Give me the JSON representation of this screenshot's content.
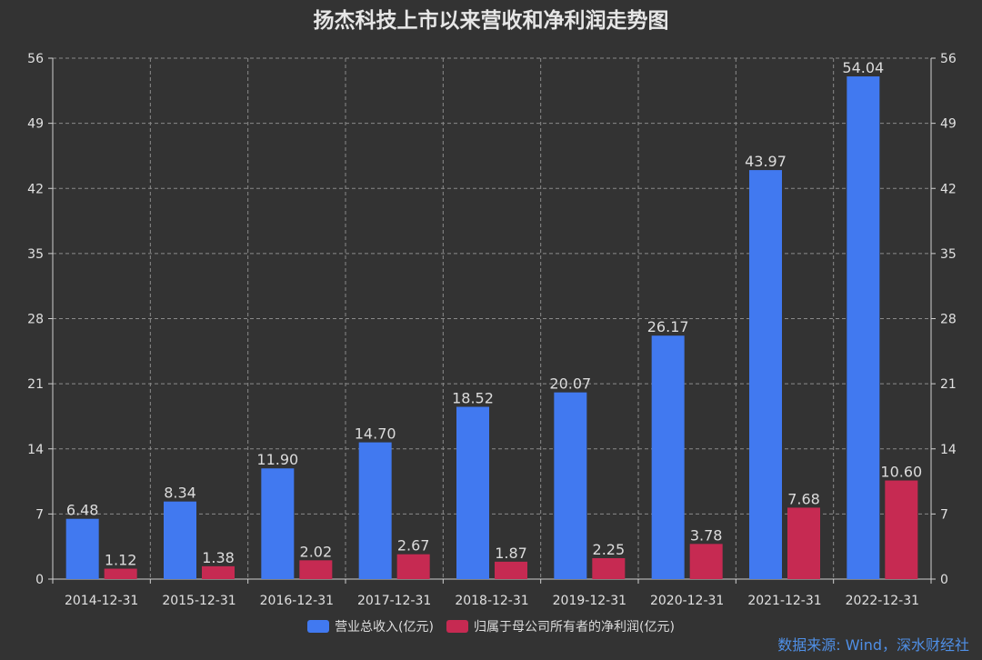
{
  "chart_data": {
    "type": "bar",
    "title": "扬杰科技上市以来营收和净利润走势图",
    "categories": [
      "2014-12-31",
      "2015-12-31",
      "2016-12-31",
      "2017-12-31",
      "2018-12-31",
      "2019-12-31",
      "2020-12-31",
      "2021-12-31",
      "2022-12-31"
    ],
    "series": [
      {
        "name": "营业总收入(亿元)",
        "color": "#4179f0",
        "values": [
          6.48,
          8.34,
          11.9,
          14.7,
          18.52,
          20.07,
          26.17,
          43.97,
          54.04
        ],
        "labels": [
          "6.48",
          "8.34",
          "11.90",
          "14.70",
          "18.52",
          "20.07",
          "26.17",
          "43.97",
          "54.04"
        ]
      },
      {
        "name": "归属于母公司所有者的净利润(亿元)",
        "color": "#c62a52",
        "values": [
          1.12,
          1.38,
          2.02,
          2.67,
          1.87,
          2.25,
          3.78,
          7.68,
          10.6
        ],
        "labels": [
          "1.12",
          "1.38",
          "2.02",
          "2.67",
          "1.87",
          "2.25",
          "3.78",
          "7.68",
          "10.60"
        ]
      }
    ],
    "ylim": [
      0,
      56
    ],
    "yticks": [
      0,
      7,
      14,
      21,
      28,
      35,
      42,
      49,
      56
    ],
    "ytick_labels": [
      "0",
      "7",
      "14",
      "21",
      "28",
      "35",
      "42",
      "49",
      "56"
    ],
    "grid": true,
    "legend_position": "bottom-center"
  },
  "source_note": "数据来源: Wind，深水财经社"
}
